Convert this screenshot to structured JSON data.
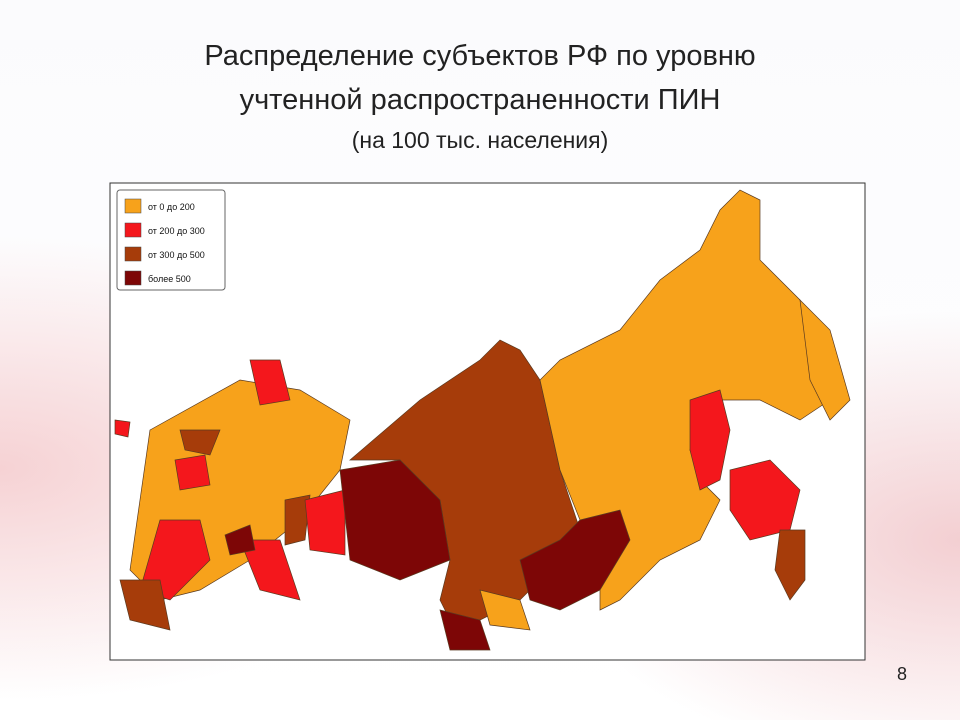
{
  "slide": {
    "title_lines": [
      "Распределение субъектов РФ по уровню",
      "учтенной распространенности ПИН"
    ],
    "subtitle": "(на 100 тыс. населения)",
    "legend": [
      {
        "label": "от 0 до 200",
        "color": "#f7a21b"
      },
      {
        "label": "от 200 до 300",
        "color": "#f4171c"
      },
      {
        "label": "от 300 до 500",
        "color": "#a63c0a"
      },
      {
        "label": "более 500",
        "color": "#7d0606"
      }
    ],
    "page_number": "8"
  }
}
